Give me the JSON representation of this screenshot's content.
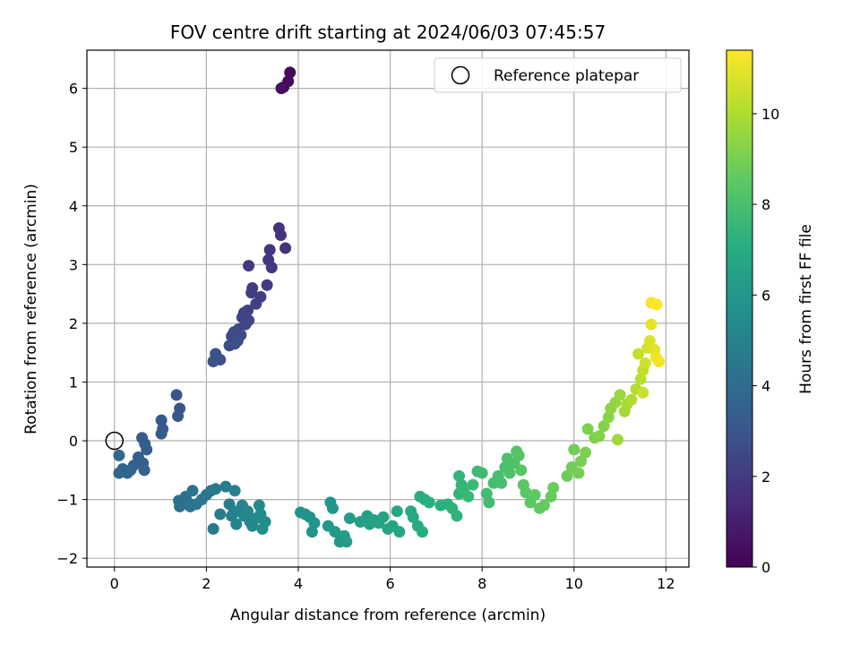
{
  "chart_data": {
    "type": "scatter",
    "title": "FOV centre drift starting at 2024/06/03 07:45:57",
    "xlabel": "Angular distance from reference (arcmin)",
    "ylabel": "Rotation from reference (arcmin)",
    "xlim": [
      -0.6,
      12.5
    ],
    "ylim": [
      -2.15,
      6.65
    ],
    "xticks": [
      0,
      2,
      4,
      6,
      8,
      10,
      12
    ],
    "yticks": [
      -2,
      -1,
      0,
      1,
      2,
      3,
      4,
      5,
      6
    ],
    "grid": true,
    "legend": {
      "position": "upper-right",
      "label": "Reference platepar"
    },
    "reference_point": {
      "x": 0,
      "y": 0
    },
    "colorbar": {
      "label": "Hours from first FF file",
      "range": [
        0,
        11.4
      ],
      "ticks": [
        0,
        2,
        4,
        6,
        8,
        10
      ],
      "colormap": "viridis"
    },
    "points": [
      [
        3.82,
        6.27,
        0.2
      ],
      [
        3.78,
        6.12,
        0.3
      ],
      [
        3.68,
        6.02,
        0.4
      ],
      [
        3.63,
        6.0,
        0.5
      ],
      [
        3.58,
        3.62,
        1.6
      ],
      [
        3.62,
        3.5,
        1.65
      ],
      [
        3.72,
        3.28,
        1.7
      ],
      [
        3.38,
        3.25,
        1.75
      ],
      [
        3.35,
        3.08,
        1.8
      ],
      [
        3.42,
        2.95,
        1.85
      ],
      [
        2.92,
        2.98,
        1.9
      ],
      [
        3.32,
        2.65,
        1.95
      ],
      [
        3.0,
        2.6,
        2.0
      ],
      [
        2.98,
        2.52,
        2.05
      ],
      [
        3.18,
        2.45,
        2.1
      ],
      [
        3.08,
        2.33,
        2.15
      ],
      [
        2.9,
        2.22,
        2.2
      ],
      [
        2.82,
        2.18,
        2.25
      ],
      [
        2.78,
        2.1,
        2.3
      ],
      [
        2.92,
        2.05,
        2.35
      ],
      [
        2.85,
        1.98,
        2.4
      ],
      [
        2.7,
        1.9,
        2.45
      ],
      [
        2.6,
        1.85,
        2.5
      ],
      [
        2.55,
        1.78,
        2.55
      ],
      [
        2.75,
        1.8,
        2.6
      ],
      [
        2.68,
        1.7,
        2.65
      ],
      [
        2.5,
        1.62,
        2.7
      ],
      [
        2.62,
        1.65,
        2.75
      ],
      [
        2.2,
        1.48,
        2.8
      ],
      [
        2.3,
        1.38,
        2.85
      ],
      [
        2.15,
        1.35,
        2.9
      ],
      [
        1.35,
        0.78,
        3.0
      ],
      [
        1.42,
        0.55,
        3.05
      ],
      [
        1.38,
        0.42,
        3.1
      ],
      [
        1.02,
        0.35,
        3.15
      ],
      [
        1.05,
        0.2,
        3.2
      ],
      [
        1.02,
        0.12,
        3.25
      ],
      [
        0.6,
        0.05,
        3.3
      ],
      [
        0.66,
        -0.05,
        3.35
      ],
      [
        0.7,
        -0.15,
        3.4
      ],
      [
        0.52,
        -0.28,
        3.45
      ],
      [
        0.62,
        -0.38,
        3.5
      ],
      [
        0.65,
        -0.5,
        3.55
      ],
      [
        0.42,
        -0.42,
        3.6
      ],
      [
        0.35,
        -0.5,
        3.65
      ],
      [
        0.18,
        -0.48,
        3.7
      ],
      [
        0.1,
        -0.55,
        3.75
      ],
      [
        0.28,
        -0.55,
        3.8
      ],
      [
        0.1,
        -0.25,
        3.85
      ],
      [
        1.4,
        -1.02,
        4.1
      ],
      [
        1.42,
        -1.12,
        4.15
      ],
      [
        1.55,
        -0.95,
        4.2
      ],
      [
        1.6,
        -1.05,
        4.25
      ],
      [
        1.7,
        -0.85,
        4.3
      ],
      [
        1.65,
        -1.12,
        4.35
      ],
      [
        1.78,
        -1.08,
        4.4
      ],
      [
        1.9,
        -1.0,
        4.45
      ],
      [
        2.0,
        -0.92,
        4.5
      ],
      [
        2.1,
        -0.85,
        4.55
      ],
      [
        2.2,
        -0.82,
        4.6
      ],
      [
        2.15,
        -1.5,
        4.65
      ],
      [
        2.3,
        -1.25,
        4.7
      ],
      [
        2.42,
        -0.78,
        4.75
      ],
      [
        2.5,
        -1.08,
        4.8
      ],
      [
        2.62,
        -0.85,
        4.85
      ],
      [
        2.6,
        -1.2,
        4.9
      ],
      [
        2.55,
        -1.28,
        4.95
      ],
      [
        2.65,
        -1.42,
        5.0
      ],
      [
        2.72,
        -1.2,
        5.05
      ],
      [
        2.78,
        -1.1,
        5.1
      ],
      [
        2.82,
        -1.28,
        5.15
      ],
      [
        2.9,
        -1.2,
        5.2
      ],
      [
        2.95,
        -1.38,
        5.25
      ],
      [
        3.0,
        -1.45,
        5.3
      ],
      [
        3.08,
        -1.32,
        5.35
      ],
      [
        3.15,
        -1.1,
        5.4
      ],
      [
        3.18,
        -1.25,
        5.45
      ],
      [
        3.22,
        -1.5,
        5.5
      ],
      [
        3.28,
        -1.38,
        5.55
      ],
      [
        4.05,
        -1.22,
        5.7
      ],
      [
        4.15,
        -1.25,
        5.75
      ],
      [
        4.25,
        -1.3,
        5.8
      ],
      [
        4.3,
        -1.55,
        5.85
      ],
      [
        4.35,
        -1.4,
        5.9
      ],
      [
        4.7,
        -1.05,
        5.95
      ],
      [
        4.75,
        -1.15,
        6.0
      ],
      [
        4.65,
        -1.45,
        6.05
      ],
      [
        4.8,
        -1.55,
        6.1
      ],
      [
        4.9,
        -1.72,
        6.15
      ],
      [
        5.0,
        -1.62,
        6.2
      ],
      [
        5.05,
        -1.72,
        6.25
      ],
      [
        5.12,
        -1.32,
        6.3
      ],
      [
        5.35,
        -1.38,
        6.35
      ],
      [
        5.5,
        -1.28,
        6.4
      ],
      [
        5.55,
        -1.42,
        6.45
      ],
      [
        5.65,
        -1.35,
        6.5
      ],
      [
        5.75,
        -1.4,
        6.55
      ],
      [
        5.85,
        -1.3,
        6.6
      ],
      [
        5.95,
        -1.5,
        6.65
      ],
      [
        6.05,
        -1.45,
        6.7
      ],
      [
        6.15,
        -1.2,
        6.75
      ],
      [
        6.2,
        -1.55,
        6.8
      ],
      [
        6.45,
        -1.2,
        6.85
      ],
      [
        6.5,
        -1.3,
        6.9
      ],
      [
        6.6,
        -1.45,
        6.95
      ],
      [
        6.65,
        -0.95,
        7.0
      ],
      [
        6.7,
        -1.55,
        7.05
      ],
      [
        6.75,
        -1.0,
        7.1
      ],
      [
        6.85,
        -1.05,
        7.15
      ],
      [
        7.1,
        -1.1,
        7.2
      ],
      [
        7.25,
        -1.08,
        7.25
      ],
      [
        7.35,
        -1.15,
        7.3
      ],
      [
        7.45,
        -1.28,
        7.35
      ],
      [
        7.5,
        -0.9,
        7.4
      ],
      [
        7.5,
        -0.6,
        7.45
      ],
      [
        7.55,
        -0.75,
        7.5
      ],
      [
        7.6,
        -0.85,
        7.55
      ],
      [
        7.7,
        -0.95,
        7.6
      ],
      [
        7.8,
        -0.75,
        7.65
      ],
      [
        7.9,
        -0.52,
        7.7
      ],
      [
        8.0,
        -0.55,
        7.75
      ],
      [
        8.1,
        -0.9,
        7.8
      ],
      [
        8.15,
        -1.05,
        7.85
      ],
      [
        8.25,
        -0.72,
        7.9
      ],
      [
        8.35,
        -0.6,
        7.95
      ],
      [
        8.42,
        -0.72,
        8.0
      ],
      [
        8.5,
        -0.45,
        8.05
      ],
      [
        8.55,
        -0.3,
        8.1
      ],
      [
        8.6,
        -0.55,
        8.15
      ],
      [
        8.7,
        -0.38,
        8.2
      ],
      [
        8.75,
        -0.18,
        8.25
      ],
      [
        8.8,
        -0.25,
        8.3
      ],
      [
        8.85,
        -0.5,
        8.35
      ],
      [
        8.9,
        -0.75,
        8.4
      ],
      [
        8.95,
        -0.88,
        8.45
      ],
      [
        9.05,
        -1.05,
        8.5
      ],
      [
        9.15,
        -0.92,
        8.55
      ],
      [
        9.25,
        -1.15,
        8.6
      ],
      [
        9.35,
        -1.1,
        8.65
      ],
      [
        9.5,
        -0.95,
        8.7
      ],
      [
        9.55,
        -0.8,
        8.75
      ],
      [
        9.85,
        -0.6,
        8.8
      ],
      [
        9.95,
        -0.45,
        8.85
      ],
      [
        10.0,
        -0.15,
        8.9
      ],
      [
        10.1,
        -0.55,
        8.95
      ],
      [
        10.15,
        -0.35,
        9.0
      ],
      [
        10.25,
        -0.2,
        9.05
      ],
      [
        10.3,
        0.2,
        9.1
      ],
      [
        10.45,
        0.05,
        9.15
      ],
      [
        10.55,
        0.08,
        9.2
      ],
      [
        10.65,
        0.25,
        9.25
      ],
      [
        10.75,
        0.4,
        9.3
      ],
      [
        10.8,
        0.55,
        9.4
      ],
      [
        10.9,
        0.65,
        9.5
      ],
      [
        11.0,
        0.78,
        9.6
      ],
      [
        10.95,
        0.02,
        9.7
      ],
      [
        11.1,
        0.5,
        9.8
      ],
      [
        11.15,
        0.62,
        9.9
      ],
      [
        11.25,
        0.7,
        10.0
      ],
      [
        11.35,
        0.88,
        10.1
      ],
      [
        11.45,
        1.05,
        10.2
      ],
      [
        11.5,
        1.2,
        10.3
      ],
      [
        11.4,
        1.48,
        10.4
      ],
      [
        11.5,
        0.82,
        10.5
      ],
      [
        11.55,
        1.32,
        10.6
      ],
      [
        11.6,
        1.58,
        10.7
      ],
      [
        11.65,
        1.7,
        10.8
      ],
      [
        11.75,
        1.55,
        10.9
      ],
      [
        11.68,
        1.98,
        11.0
      ],
      [
        11.78,
        1.42,
        11.1
      ],
      [
        11.85,
        1.35,
        11.2
      ],
      [
        11.68,
        2.35,
        11.3
      ],
      [
        11.8,
        2.32,
        11.4
      ]
    ]
  }
}
